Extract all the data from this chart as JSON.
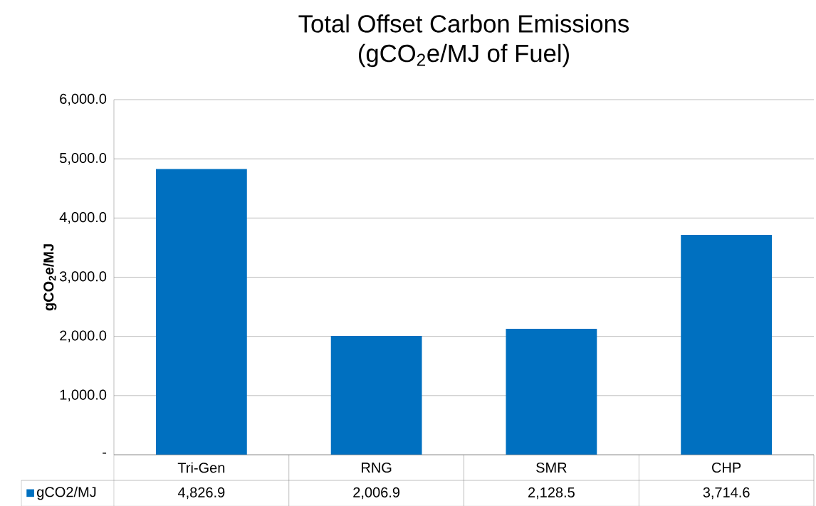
{
  "chart_data": {
    "type": "bar",
    "title": "Total Offset Carbon Emissions",
    "subtitle": "(gCO$_{2}$e/MJ of Fuel)",
    "ylabel": "gCO$_{2}$e/MJ",
    "categories": [
      "Tri-Gen",
      "RNG",
      "SMR",
      "CHP"
    ],
    "series": [
      {
        "name": "gCO2/MJ",
        "color": "#0070c0",
        "values": [
          4826.9,
          2006.9,
          2128.5,
          3714.6
        ],
        "value_labels": [
          "4,826.9",
          "2,006.9",
          "2,128.5",
          "3,714.6"
        ]
      }
    ],
    "ylim": [
      0,
      6000
    ],
    "yticks": [
      {
        "value": 0,
        "label": "-"
      },
      {
        "value": 1000,
        "label": "1,000.0"
      },
      {
        "value": 2000,
        "label": "2,000.0"
      },
      {
        "value": 3000,
        "label": "3,000.0"
      },
      {
        "value": 4000,
        "label": "4,000.0"
      },
      {
        "value": 5000,
        "label": "5,000.0"
      },
      {
        "value": 6000,
        "label": "6,000.0"
      }
    ],
    "grid": "y",
    "legend": "bottom"
  }
}
